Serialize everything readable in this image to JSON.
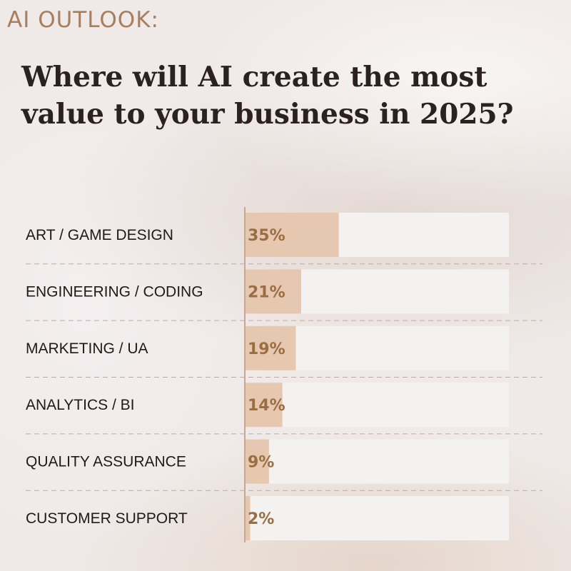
{
  "eyebrow": "AI OUTLOOK:",
  "title_line1": "Where will AI create the most",
  "title_line2": "value to your business in 2025?",
  "colors": {
    "bar_fill": "#e6c8b0",
    "track_fill": "#f4f2f1",
    "value_text": "#9b6d43",
    "divider": "#b9aca8",
    "axis": "#c4a894"
  },
  "chart_data": {
    "type": "bar",
    "orientation": "horizontal",
    "categories": [
      "ART / GAME DESIGN",
      "ENGINEERING / CODING",
      "MARKETING / UA",
      "ANALYTICS / BI",
      "QUALITY ASSURANCE",
      "CUSTOMER SUPPORT"
    ],
    "values": [
      35,
      21,
      19,
      14,
      9,
      2
    ],
    "value_labels": [
      "35%",
      "21%",
      "19%",
      "14%",
      "9%",
      "2%"
    ],
    "xlim": [
      0,
      100
    ],
    "grid": false
  }
}
